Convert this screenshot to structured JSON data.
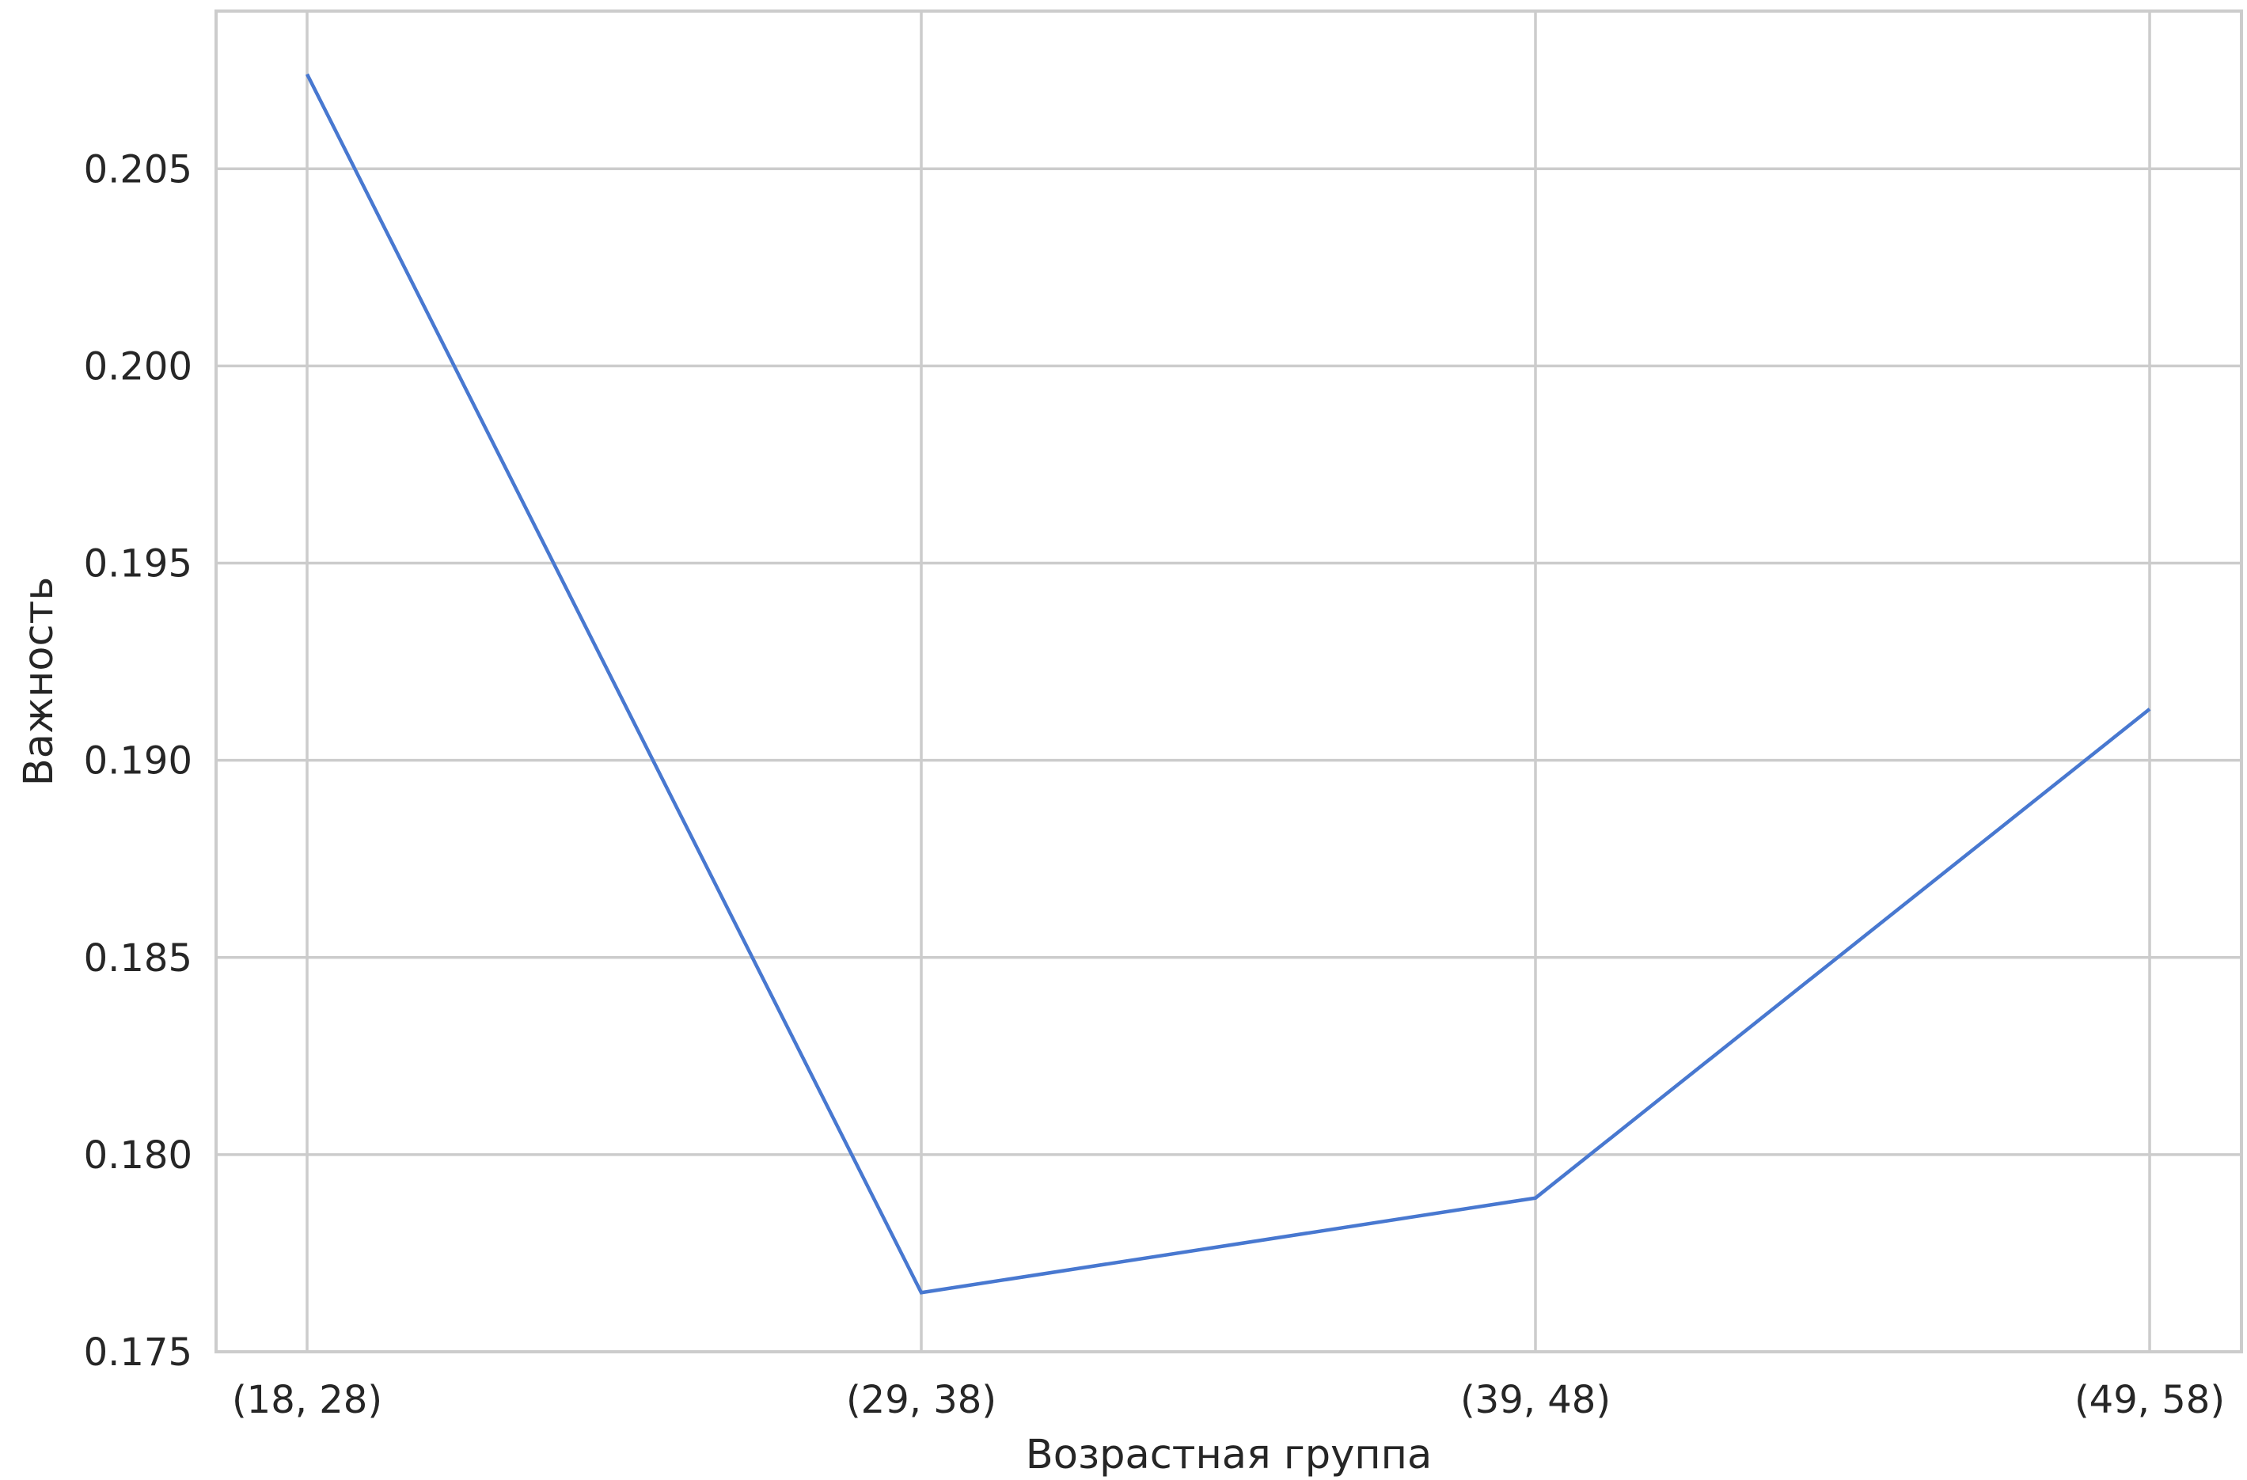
{
  "chart_data": {
    "type": "line",
    "title": "",
    "xlabel": "Возрастная группа",
    "ylabel": "Важность",
    "categories": [
      "(18, 28)",
      "(29, 38)",
      "(39, 48)",
      "(49, 58)"
    ],
    "series": [
      {
        "values": [
          0.2074,
          0.1765,
          0.1789,
          0.1913
        ],
        "color": "#4878d0"
      }
    ],
    "ylim": [
      0.175,
      0.209
    ],
    "yticks": [
      0.175,
      0.18,
      0.185,
      0.19,
      0.195,
      0.2,
      0.205
    ],
    "ytick_labels": [
      "0.175",
      "0.180",
      "0.185",
      "0.190",
      "0.195",
      "0.200",
      "0.205"
    ],
    "grid": true,
    "legend": "none"
  }
}
